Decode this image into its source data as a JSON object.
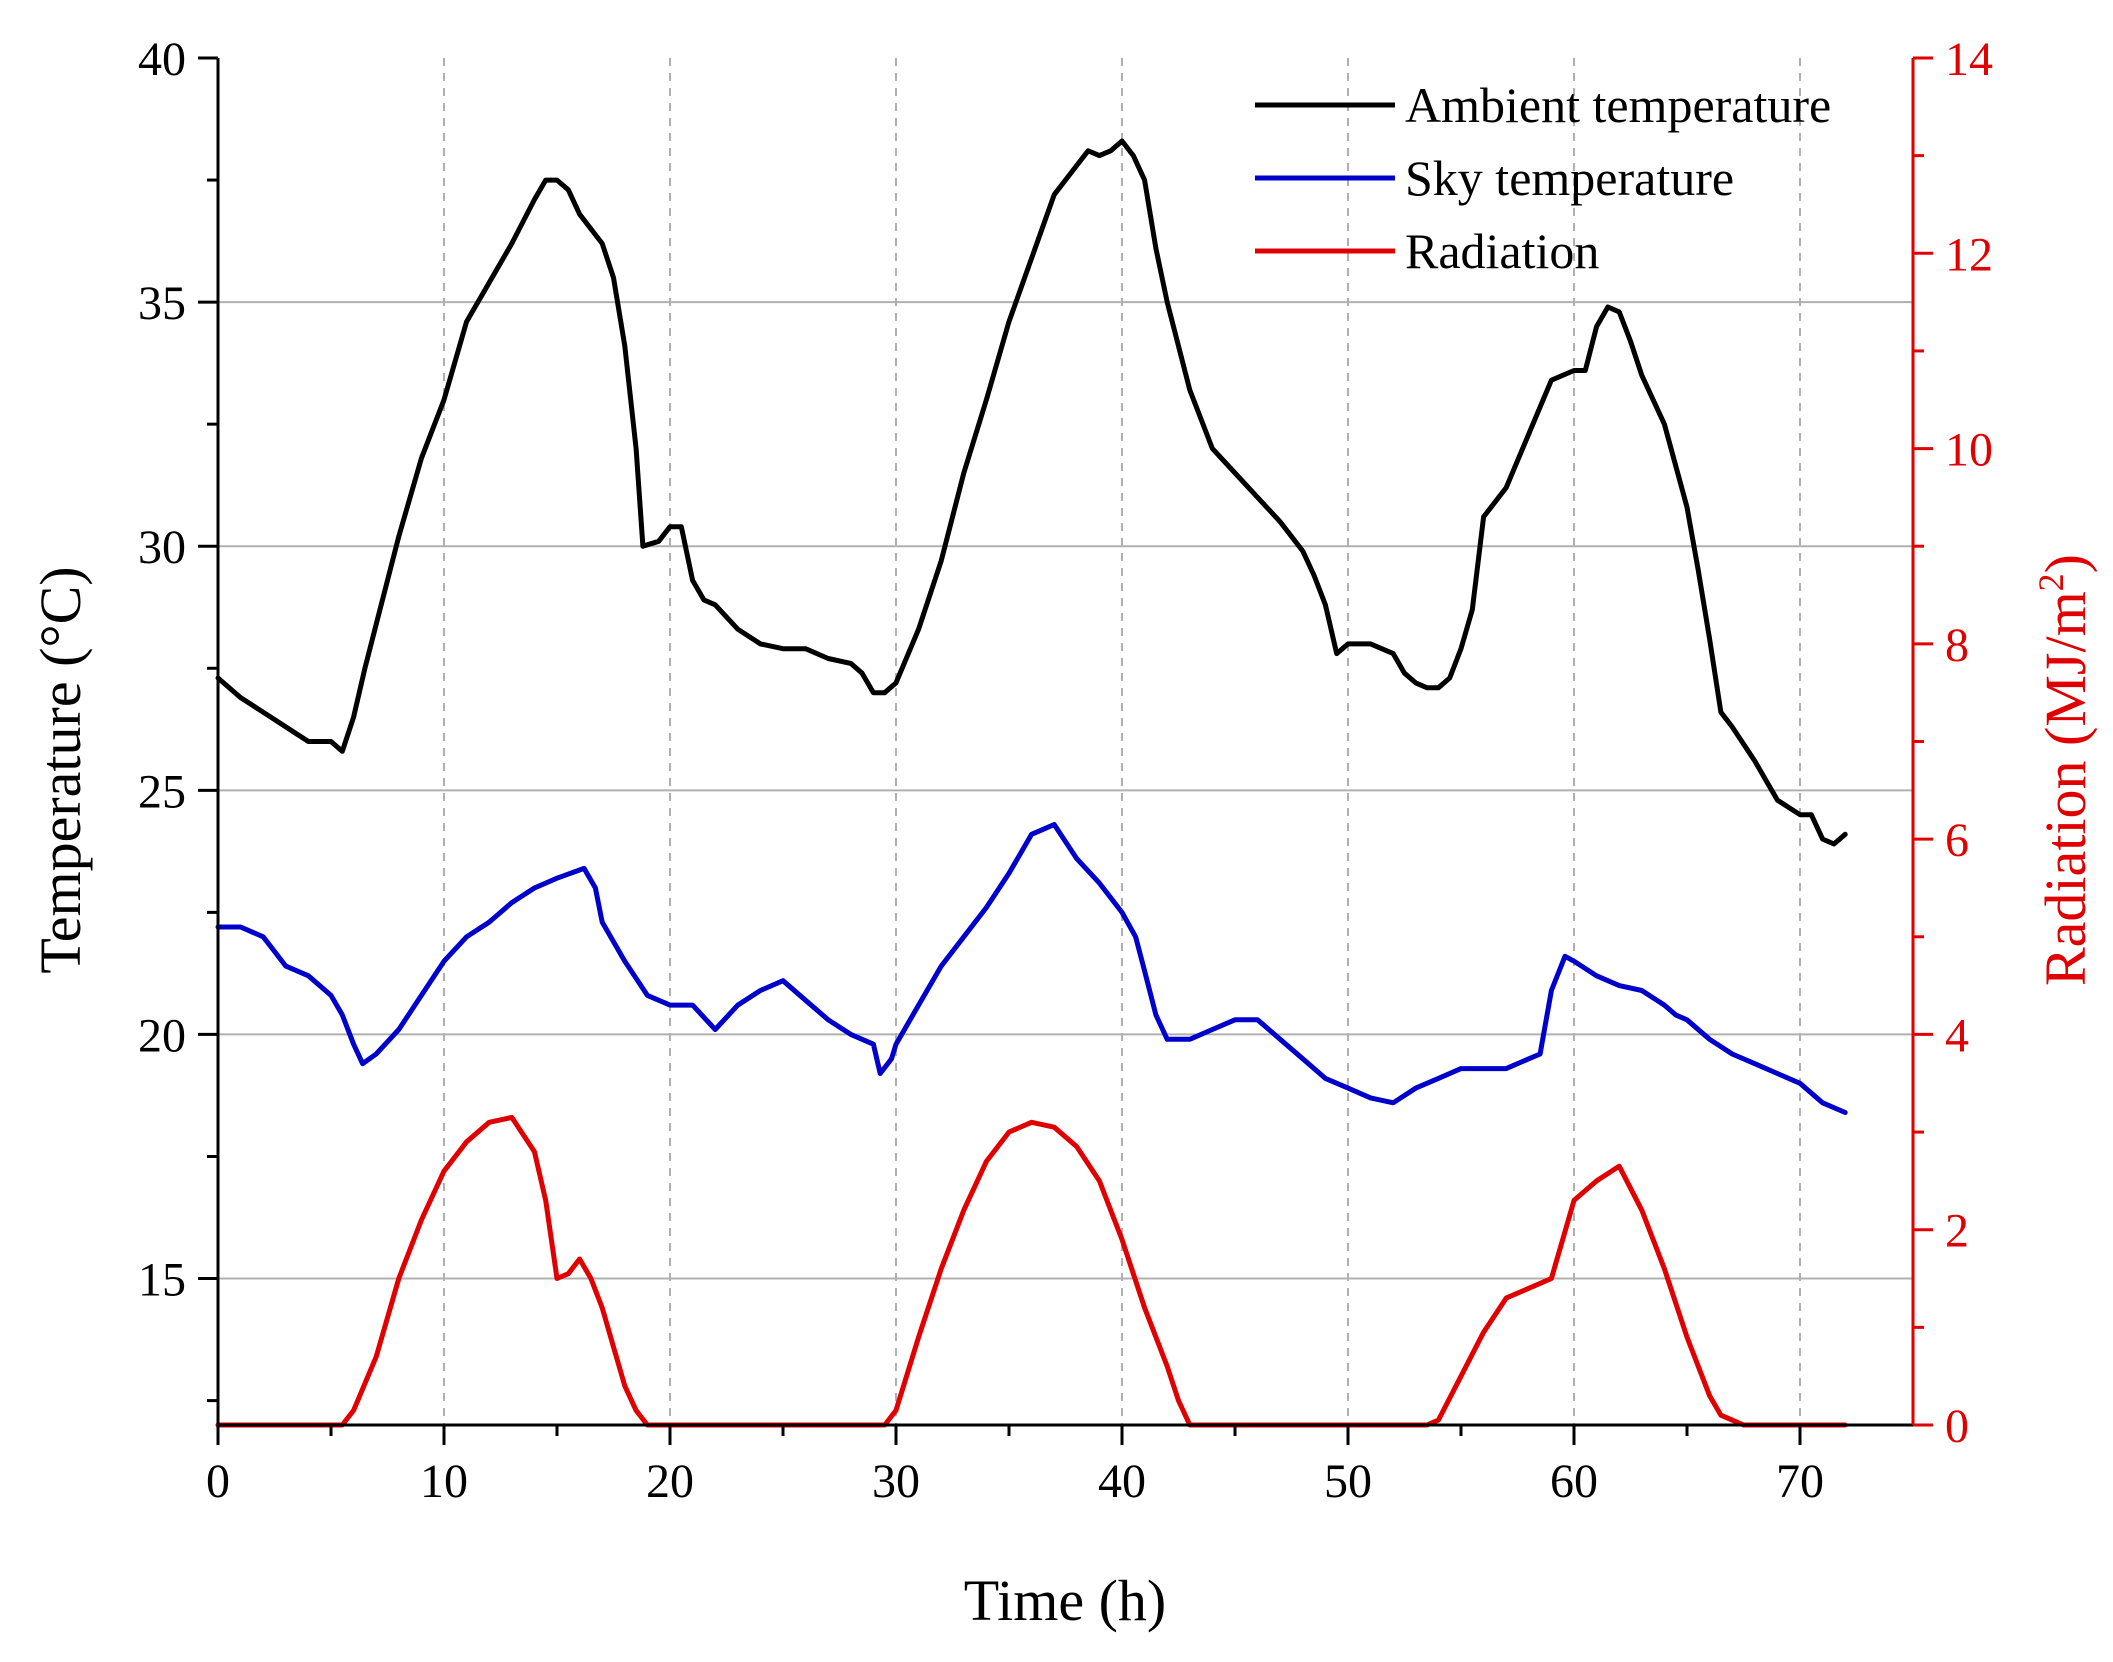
{
  "chart_data": {
    "type": "line",
    "title": "",
    "xlabel": "Time (h)",
    "ylabel_left": "Temperature (°C)",
    "ylabel_right_main": "Radiation (MJ/m",
    "ylabel_right_sup": "2",
    "ylabel_right_close": ")",
    "xlim": [
      0,
      75
    ],
    "ylim_left": [
      12,
      40
    ],
    "ylim_right": [
      0,
      14
    ],
    "x_ticks": [
      0,
      10,
      20,
      30,
      40,
      50,
      60,
      70
    ],
    "x_tick_labels": [
      "0",
      "10",
      "20",
      "30",
      "40",
      "50",
      "60",
      "70"
    ],
    "y_left_ticks": [
      15,
      20,
      25,
      30,
      35,
      40
    ],
    "y_left_tick_labels": [
      "15",
      "20",
      "25",
      "30",
      "35",
      "40"
    ],
    "y_right_ticks": [
      0,
      2,
      4,
      6,
      8,
      10,
      12,
      14
    ],
    "y_right_tick_labels": [
      "0",
      "2",
      "4",
      "6",
      "8",
      "10",
      "12",
      "14"
    ],
    "grid": true,
    "legend_position": "top-right",
    "colors": {
      "ambient": "#000000",
      "sky": "#0000cc",
      "radiation": "#e00000",
      "right_axis": "#e00000",
      "grid": "#b0b0b0"
    },
    "series": [
      {
        "name": "Ambient temperature",
        "axis": "left",
        "color": "#000000",
        "x": [
          0,
          1,
          2,
          3,
          4,
          5,
          5.5,
          6,
          6.5,
          7,
          8,
          9,
          10,
          11,
          12,
          13,
          14,
          14.5,
          15,
          15.5,
          16,
          16.5,
          17,
          17.5,
          18,
          18.5,
          18.8,
          19.5,
          20,
          20.5,
          21,
          21.5,
          22,
          23,
          24,
          25,
          26,
          27,
          28,
          28.5,
          29,
          29.5,
          30,
          31,
          32,
          33,
          34,
          35,
          36,
          37,
          38,
          38.5,
          39,
          39.5,
          40,
          40.5,
          41,
          41.5,
          42,
          43,
          44,
          45,
          46,
          47,
          48,
          48.5,
          49,
          49.5,
          50,
          51,
          52,
          52.5,
          53,
          53.5,
          54,
          54.5,
          55,
          55.5,
          56,
          57,
          58,
          59,
          60,
          60.5,
          61,
          61.5,
          62,
          62.5,
          63,
          64,
          65,
          65.5,
          66,
          66.5,
          67,
          68,
          69,
          70,
          70.5,
          71,
          71.5,
          72
        ],
        "values": [
          27.3,
          26.9,
          26.6,
          26.3,
          26.0,
          26.0,
          25.8,
          26.5,
          27.5,
          28.4,
          30.2,
          31.8,
          33.0,
          34.6,
          35.4,
          36.2,
          37.1,
          37.5,
          37.5,
          37.3,
          36.8,
          36.5,
          36.2,
          35.5,
          34.1,
          32.0,
          30.0,
          30.1,
          30.4,
          30.4,
          29.3,
          28.9,
          28.8,
          28.3,
          28.0,
          27.9,
          27.9,
          27.7,
          27.6,
          27.4,
          27.0,
          27.0,
          27.2,
          28.3,
          29.7,
          31.5,
          33.0,
          34.6,
          35.9,
          37.2,
          37.8,
          38.1,
          38.0,
          38.1,
          38.3,
          38.0,
          37.5,
          36.1,
          35.0,
          33.2,
          32.0,
          31.5,
          31.0,
          30.5,
          29.9,
          29.4,
          28.8,
          27.8,
          28.0,
          28.0,
          27.8,
          27.4,
          27.2,
          27.1,
          27.1,
          27.3,
          27.9,
          28.7,
          30.6,
          31.2,
          32.3,
          33.4,
          33.6,
          33.6,
          34.5,
          34.9,
          34.8,
          34.2,
          33.5,
          32.5,
          30.8,
          29.5,
          28.1,
          26.6,
          26.3,
          25.6,
          24.8,
          24.5,
          24.5,
          24.0,
          23.9,
          24.1
        ],
        "line_width": 5
      },
      {
        "name": "Sky temperature",
        "axis": "left",
        "color": "#0000cc",
        "x": [
          0,
          1,
          1.5,
          2,
          2.5,
          3,
          4,
          5,
          5.5,
          6,
          6.4,
          7,
          8,
          9,
          10,
          11,
          12,
          13,
          14,
          15,
          16.2,
          16.7,
          17,
          18,
          19,
          20,
          21,
          22,
          23,
          24,
          25,
          26,
          27,
          28,
          29,
          29.3,
          29.8,
          30,
          31,
          32,
          33,
          34,
          35,
          36,
          36.5,
          37,
          38,
          39,
          40,
          40.6,
          41,
          41.5,
          42,
          43,
          44,
          45,
          46,
          47,
          48,
          49,
          50,
          51,
          52,
          53,
          54,
          55,
          56,
          57,
          58,
          58.5,
          59,
          59.6,
          60,
          61,
          62,
          63,
          64,
          64.5,
          65,
          66,
          67,
          68,
          69,
          70,
          71,
          72
        ],
        "values": [
          22.2,
          22.2,
          22.1,
          22.0,
          21.7,
          21.4,
          21.2,
          20.8,
          20.4,
          19.8,
          19.4,
          19.6,
          20.1,
          20.8,
          21.5,
          22.0,
          22.3,
          22.7,
          23.0,
          23.2,
          23.4,
          23.0,
          22.3,
          21.5,
          20.8,
          20.6,
          20.6,
          20.1,
          20.6,
          20.9,
          21.1,
          20.7,
          20.3,
          20.0,
          19.8,
          19.2,
          19.5,
          19.8,
          20.6,
          21.4,
          22.0,
          22.6,
          23.3,
          24.1,
          24.2,
          24.3,
          23.6,
          23.1,
          22.5,
          22.0,
          21.3,
          20.4,
          19.9,
          19.9,
          20.1,
          20.3,
          20.3,
          19.9,
          19.5,
          19.1,
          18.9,
          18.7,
          18.6,
          18.9,
          19.1,
          19.3,
          19.3,
          19.3,
          19.5,
          19.6,
          20.9,
          21.6,
          21.5,
          21.2,
          21.0,
          20.9,
          20.6,
          20.4,
          20.3,
          19.9,
          19.6,
          19.4,
          19.2,
          19.0,
          18.6,
          18.4
        ],
        "line_width": 5
      },
      {
        "name": "Radiation",
        "axis": "right",
        "color": "#e00000",
        "x": [
          0,
          5,
          5.5,
          6,
          7,
          8,
          9,
          10,
          11,
          12,
          13,
          14,
          14.5,
          15,
          15.5,
          16,
          16.5,
          17,
          17.5,
          18,
          18.5,
          19,
          20,
          25,
          29,
          29.5,
          30,
          31,
          32,
          33,
          34,
          35,
          36,
          37,
          38,
          39,
          40,
          41,
          42,
          42.5,
          43,
          45,
          50,
          53.5,
          54,
          55,
          56,
          57,
          58,
          59,
          60,
          61,
          62,
          63,
          64,
          65,
          66,
          66.5,
          67,
          67.5,
          70,
          72
        ],
        "values": [
          0.0,
          0.0,
          0.0,
          0.15,
          0.7,
          1.5,
          2.1,
          2.6,
          2.9,
          3.1,
          3.15,
          2.8,
          2.3,
          1.5,
          1.55,
          1.7,
          1.5,
          1.2,
          0.8,
          0.4,
          0.15,
          0.0,
          0.0,
          0.0,
          0.0,
          0.0,
          0.15,
          0.9,
          1.6,
          2.2,
          2.7,
          3.0,
          3.1,
          3.05,
          2.85,
          2.5,
          1.9,
          1.2,
          0.6,
          0.25,
          0.0,
          0.0,
          0.0,
          0.0,
          0.05,
          0.5,
          0.95,
          1.3,
          1.4,
          1.5,
          2.3,
          2.5,
          2.65,
          2.2,
          1.6,
          0.9,
          0.3,
          0.1,
          0.05,
          0.0,
          0.0,
          0.0
        ],
        "line_width": 5
      }
    ]
  }
}
